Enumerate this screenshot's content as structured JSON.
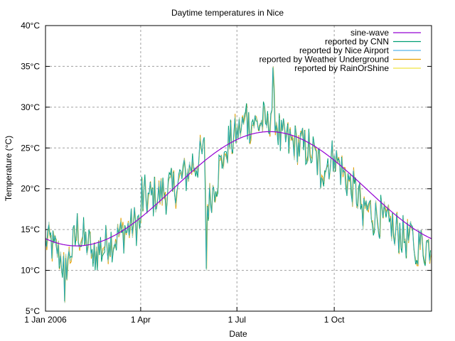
{
  "chart_data": {
    "type": "line",
    "title": "Daytime temperatures in Nice",
    "xlabel": "Date",
    "ylabel": "Temperature (°C)",
    "x_range_days": [
      0,
      365
    ],
    "ylim": [
      5,
      40
    ],
    "yticks": [
      {
        "value": 5,
        "label": "5°C"
      },
      {
        "value": 10,
        "label": "10°C"
      },
      {
        "value": 15,
        "label": "15°C"
      },
      {
        "value": 20,
        "label": "20°C"
      },
      {
        "value": 25,
        "label": "25°C"
      },
      {
        "value": 30,
        "label": "30°C"
      },
      {
        "value": 35,
        "label": "35°C"
      },
      {
        "value": 40,
        "label": "40°C"
      }
    ],
    "xticks": [
      {
        "day": 0,
        "label": "1 Jan 2006"
      },
      {
        "day": 90,
        "label": "1 Apr"
      },
      {
        "day": 181,
        "label": "1 Jul"
      },
      {
        "day": 273,
        "label": "1 Oct"
      }
    ],
    "grid": true,
    "legend_position": "top-right",
    "series": [
      {
        "name": "sine-wave",
        "color": "#9400d3",
        "kind": "sine",
        "mean": 20,
        "amplitude": 7,
        "peak_day": 212
      },
      {
        "name": "reported by CNN",
        "color": "#009e73",
        "kind": "noisy"
      },
      {
        "name": "reported by Nice Airport",
        "color": "#56b4e9",
        "kind": "noisy"
      },
      {
        "name": "reported by Weather Underground",
        "color": "#e69f00",
        "kind": "noisy"
      },
      {
        "name": "reported by RainOrShine",
        "color": "#f0e442",
        "kind": "noisy"
      }
    ],
    "approx_observed_points": [
      {
        "day": 0,
        "value": 14
      },
      {
        "day": 15,
        "value": 10
      },
      {
        "day": 18,
        "value": 6
      },
      {
        "day": 30,
        "value": 17
      },
      {
        "day": 45,
        "value": 11
      },
      {
        "day": 60,
        "value": 13
      },
      {
        "day": 90,
        "value": 16
      },
      {
        "day": 91,
        "value": 21
      },
      {
        "day": 120,
        "value": 20
      },
      {
        "day": 150,
        "value": 26
      },
      {
        "day": 152,
        "value": 10
      },
      {
        "day": 170,
        "value": 24
      },
      {
        "day": 181,
        "value": 28
      },
      {
        "day": 190,
        "value": 30
      },
      {
        "day": 210,
        "value": 29
      },
      {
        "day": 215,
        "value": 35
      },
      {
        "day": 222,
        "value": 25
      },
      {
        "day": 250,
        "value": 24
      },
      {
        "day": 260,
        "value": 20
      },
      {
        "day": 273,
        "value": 24
      },
      {
        "day": 300,
        "value": 15
      },
      {
        "day": 330,
        "value": 13
      },
      {
        "day": 350,
        "value": 11
      },
      {
        "day": 364,
        "value": 12
      }
    ]
  }
}
